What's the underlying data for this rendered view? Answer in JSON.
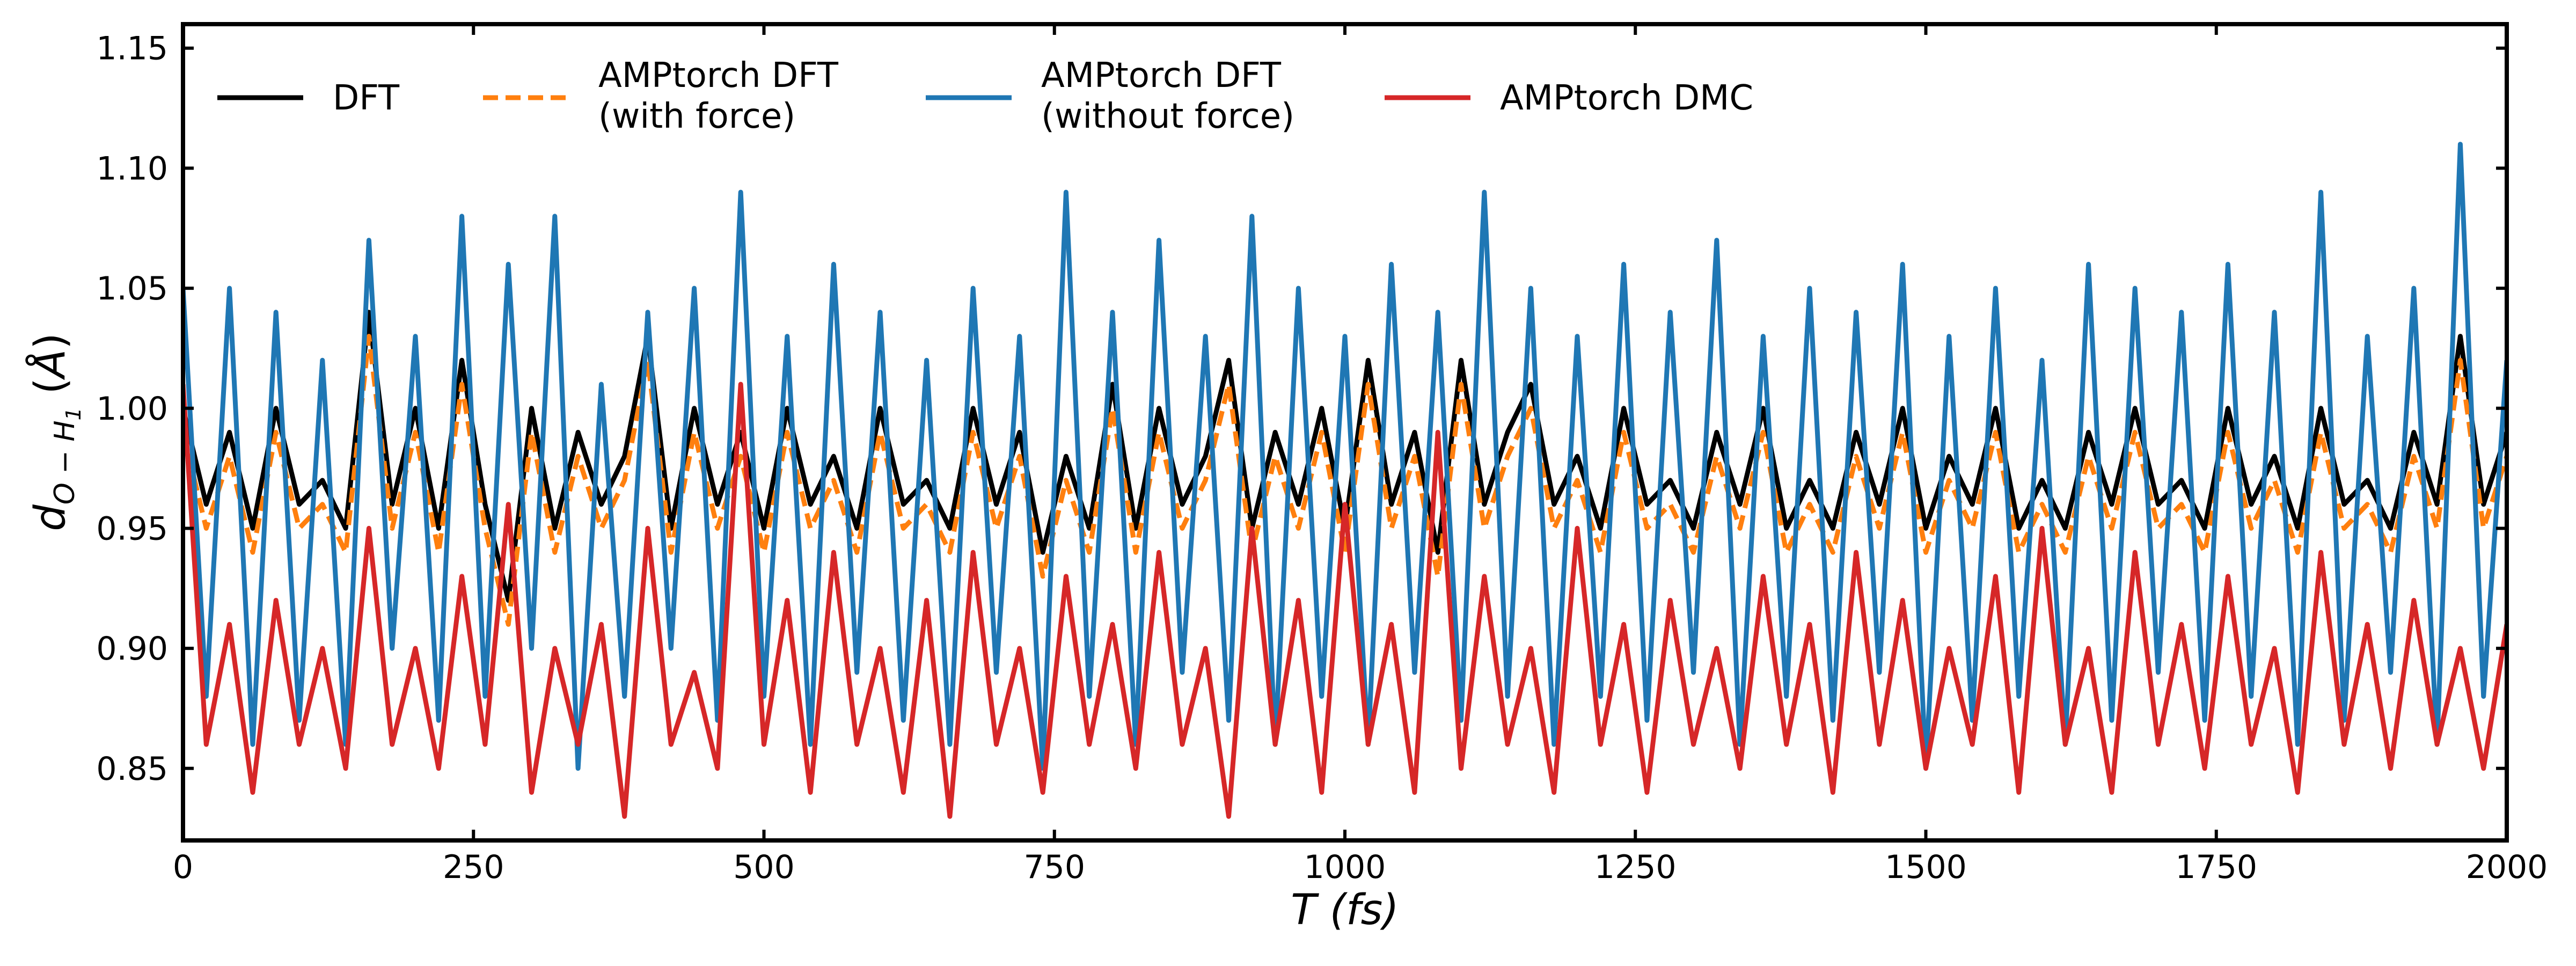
{
  "chart_data": {
    "type": "line",
    "title": "",
    "xlabel": "T (fs)",
    "ylabel": "d_{O-H_1} (Å)",
    "xlim": [
      0,
      2000
    ],
    "ylim": [
      0.82,
      1.16
    ],
    "x_ticks": [
      0,
      250,
      500,
      750,
      1000,
      1250,
      1500,
      1750,
      2000
    ],
    "y_ticks": [
      0.85,
      0.9,
      0.95,
      1.0,
      1.05,
      1.1,
      1.15
    ],
    "x_tick_labels": [
      "0",
      "250",
      "500",
      "750",
      "1000",
      "1250",
      "1500",
      "1750",
      "2000"
    ],
    "y_tick_labels": [
      "0.85",
      "0.90",
      "0.95",
      "1.00",
      "1.05",
      "1.10",
      "1.15"
    ],
    "grid": false,
    "legend_position": "top",
    "series": [
      {
        "name": "DFT",
        "color": "#000000",
        "style": "solid",
        "x": [
          0,
          20,
          40,
          60,
          80,
          100,
          120,
          140,
          160,
          180,
          200,
          220,
          240,
          260,
          280,
          300,
          320,
          340,
          360,
          380,
          400,
          420,
          440,
          460,
          480,
          500,
          520,
          540,
          560,
          580,
          600,
          620,
          640,
          660,
          680,
          700,
          720,
          740,
          760,
          780,
          800,
          820,
          840,
          860,
          880,
          900,
          920,
          940,
          960,
          980,
          1000,
          1020,
          1040,
          1060,
          1080,
          1100,
          1120,
          1140,
          1160,
          1180,
          1200,
          1220,
          1240,
          1260,
          1280,
          1300,
          1320,
          1340,
          1360,
          1380,
          1400,
          1420,
          1440,
          1460,
          1480,
          1500,
          1520,
          1540,
          1560,
          1580,
          1600,
          1620,
          1640,
          1660,
          1680,
          1700,
          1720,
          1740,
          1760,
          1780,
          1800,
          1820,
          1840,
          1860,
          1880,
          1900,
          1920,
          1940,
          1960,
          1980,
          2000
        ],
        "values": [
          1.0,
          0.96,
          0.99,
          0.95,
          1.0,
          0.96,
          0.97,
          0.95,
          1.04,
          0.96,
          1.0,
          0.95,
          1.02,
          0.96,
          0.92,
          1.0,
          0.95,
          0.99,
          0.96,
          0.98,
          1.03,
          0.95,
          1.0,
          0.96,
          0.99,
          0.95,
          1.0,
          0.96,
          0.98,
          0.95,
          1.0,
          0.96,
          0.97,
          0.95,
          1.0,
          0.96,
          0.99,
          0.94,
          0.98,
          0.95,
          1.01,
          0.95,
          1.0,
          0.96,
          0.98,
          1.02,
          0.95,
          0.99,
          0.96,
          1.0,
          0.95,
          1.02,
          0.96,
          0.99,
          0.94,
          1.02,
          0.96,
          0.99,
          1.01,
          0.96,
          0.98,
          0.95,
          1.0,
          0.96,
          0.97,
          0.95,
          0.99,
          0.96,
          1.0,
          0.95,
          0.97,
          0.95,
          0.99,
          0.96,
          1.0,
          0.95,
          0.98,
          0.96,
          1.0,
          0.95,
          0.97,
          0.95,
          0.99,
          0.96,
          1.0,
          0.96,
          0.97,
          0.95,
          1.0,
          0.96,
          0.98,
          0.95,
          1.0,
          0.96,
          0.97,
          0.95,
          0.99,
          0.96,
          1.03,
          0.96,
          0.99
        ]
      },
      {
        "name": "AMPtorch DFT\n(with force)",
        "color": "#ff7f0e",
        "style": "dashed",
        "x": [
          0,
          20,
          40,
          60,
          80,
          100,
          120,
          140,
          160,
          180,
          200,
          220,
          240,
          260,
          280,
          300,
          320,
          340,
          360,
          380,
          400,
          420,
          440,
          460,
          480,
          500,
          520,
          540,
          560,
          580,
          600,
          620,
          640,
          660,
          680,
          700,
          720,
          740,
          760,
          780,
          800,
          820,
          840,
          860,
          880,
          900,
          920,
          940,
          960,
          980,
          1000,
          1020,
          1040,
          1060,
          1080,
          1100,
          1120,
          1140,
          1160,
          1180,
          1200,
          1220,
          1240,
          1260,
          1280,
          1300,
          1320,
          1340,
          1360,
          1380,
          1400,
          1420,
          1440,
          1460,
          1480,
          1500,
          1520,
          1540,
          1560,
          1580,
          1600,
          1620,
          1640,
          1660,
          1680,
          1700,
          1720,
          1740,
          1760,
          1780,
          1800,
          1820,
          1840,
          1860,
          1880,
          1900,
          1920,
          1940,
          1960,
          1980,
          2000
        ],
        "values": [
          0.99,
          0.95,
          0.98,
          0.94,
          0.99,
          0.95,
          0.96,
          0.94,
          1.03,
          0.95,
          0.99,
          0.94,
          1.01,
          0.95,
          0.91,
          0.99,
          0.94,
          0.98,
          0.95,
          0.97,
          1.02,
          0.94,
          0.99,
          0.95,
          0.98,
          0.94,
          0.99,
          0.95,
          0.97,
          0.94,
          0.99,
          0.95,
          0.96,
          0.94,
          0.99,
          0.95,
          0.98,
          0.93,
          0.97,
          0.94,
          1.0,
          0.94,
          0.99,
          0.95,
          0.97,
          1.01,
          0.94,
          0.98,
          0.95,
          0.99,
          0.94,
          1.01,
          0.95,
          0.98,
          0.93,
          1.01,
          0.95,
          0.98,
          1.0,
          0.95,
          0.97,
          0.94,
          0.99,
          0.95,
          0.96,
          0.94,
          0.98,
          0.95,
          0.99,
          0.94,
          0.96,
          0.94,
          0.98,
          0.95,
          0.99,
          0.94,
          0.97,
          0.95,
          0.99,
          0.94,
          0.96,
          0.94,
          0.98,
          0.95,
          0.99,
          0.95,
          0.96,
          0.94,
          0.99,
          0.95,
          0.97,
          0.94,
          0.99,
          0.95,
          0.96,
          0.94,
          0.98,
          0.95,
          1.02,
          0.95,
          0.98
        ]
      },
      {
        "name": "AMPtorch DFT\n(without force)",
        "color": "#1f77b4",
        "style": "solid",
        "x": [
          0,
          20,
          40,
          60,
          80,
          100,
          120,
          140,
          160,
          180,
          200,
          220,
          240,
          260,
          280,
          300,
          320,
          340,
          360,
          380,
          400,
          420,
          440,
          460,
          480,
          500,
          520,
          540,
          560,
          580,
          600,
          620,
          640,
          660,
          680,
          700,
          720,
          740,
          760,
          780,
          800,
          820,
          840,
          860,
          880,
          900,
          920,
          940,
          960,
          980,
          1000,
          1020,
          1040,
          1060,
          1080,
          1100,
          1120,
          1140,
          1160,
          1180,
          1200,
          1220,
          1240,
          1260,
          1280,
          1300,
          1320,
          1340,
          1360,
          1380,
          1400,
          1420,
          1440,
          1460,
          1480,
          1500,
          1520,
          1540,
          1560,
          1580,
          1600,
          1620,
          1640,
          1660,
          1680,
          1700,
          1720,
          1740,
          1760,
          1780,
          1800,
          1820,
          1840,
          1860,
          1880,
          1900,
          1920,
          1940,
          1960,
          1980,
          2000
        ],
        "values": [
          1.05,
          0.88,
          1.05,
          0.86,
          1.04,
          0.87,
          1.02,
          0.86,
          1.07,
          0.9,
          1.03,
          0.87,
          1.08,
          0.88,
          1.06,
          0.9,
          1.08,
          0.85,
          1.01,
          0.88,
          1.04,
          0.9,
          1.05,
          0.87,
          1.09,
          0.88,
          1.03,
          0.86,
          1.06,
          0.89,
          1.04,
          0.87,
          1.02,
          0.86,
          1.05,
          0.89,
          1.03,
          0.85,
          1.09,
          0.88,
          1.04,
          0.86,
          1.07,
          0.89,
          1.03,
          0.87,
          1.08,
          0.86,
          1.05,
          0.88,
          1.03,
          0.86,
          1.06,
          0.89,
          1.04,
          0.87,
          1.09,
          0.88,
          1.05,
          0.86,
          1.03,
          0.88,
          1.06,
          0.87,
          1.04,
          0.89,
          1.07,
          0.86,
          1.03,
          0.88,
          1.05,
          0.87,
          1.04,
          0.89,
          1.06,
          0.85,
          1.03,
          0.87,
          1.05,
          0.88,
          1.02,
          0.86,
          1.06,
          0.87,
          1.05,
          0.89,
          1.04,
          0.87,
          1.06,
          0.88,
          1.04,
          0.86,
          1.09,
          0.87,
          1.03,
          0.89,
          1.05,
          0.86,
          1.11,
          0.88,
          1.02
        ]
      },
      {
        "name": "AMPtorch DMC",
        "color": "#d62728",
        "style": "solid",
        "x": [
          0,
          20,
          40,
          60,
          80,
          100,
          120,
          140,
          160,
          180,
          200,
          220,
          240,
          260,
          280,
          300,
          320,
          340,
          360,
          380,
          400,
          420,
          440,
          460,
          480,
          500,
          520,
          540,
          560,
          580,
          600,
          620,
          640,
          660,
          680,
          700,
          720,
          740,
          760,
          780,
          800,
          820,
          840,
          860,
          880,
          900,
          920,
          940,
          960,
          980,
          1000,
          1020,
          1040,
          1060,
          1080,
          1100,
          1120,
          1140,
          1160,
          1180,
          1200,
          1220,
          1240,
          1260,
          1280,
          1300,
          1320,
          1340,
          1360,
          1380,
          1400,
          1420,
          1440,
          1460,
          1480,
          1500,
          1520,
          1540,
          1560,
          1580,
          1600,
          1620,
          1640,
          1660,
          1680,
          1700,
          1720,
          1740,
          1760,
          1780,
          1800,
          1820,
          1840,
          1860,
          1880,
          1900,
          1920,
          1940,
          1960,
          1980,
          2000
        ],
        "values": [
          1.01,
          0.86,
          0.91,
          0.84,
          0.92,
          0.86,
          0.9,
          0.85,
          0.95,
          0.86,
          0.9,
          0.85,
          0.93,
          0.86,
          0.96,
          0.84,
          0.9,
          0.86,
          0.91,
          0.83,
          0.95,
          0.86,
          0.89,
          0.85,
          1.01,
          0.86,
          0.92,
          0.84,
          0.94,
          0.86,
          0.9,
          0.84,
          0.92,
          0.83,
          0.94,
          0.86,
          0.9,
          0.84,
          0.93,
          0.86,
          0.91,
          0.85,
          0.94,
          0.86,
          0.9,
          0.83,
          0.95,
          0.86,
          0.92,
          0.84,
          0.96,
          0.86,
          0.91,
          0.84,
          0.99,
          0.85,
          0.93,
          0.86,
          0.9,
          0.84,
          0.95,
          0.86,
          0.91,
          0.84,
          0.92,
          0.86,
          0.9,
          0.85,
          0.93,
          0.86,
          0.91,
          0.84,
          0.94,
          0.86,
          0.92,
          0.85,
          0.9,
          0.86,
          0.93,
          0.84,
          0.95,
          0.86,
          0.9,
          0.84,
          0.94,
          0.86,
          0.91,
          0.85,
          0.93,
          0.86,
          0.9,
          0.84,
          0.94,
          0.86,
          0.91,
          0.85,
          0.92,
          0.86,
          0.9,
          0.85,
          0.91
        ]
      }
    ]
  }
}
